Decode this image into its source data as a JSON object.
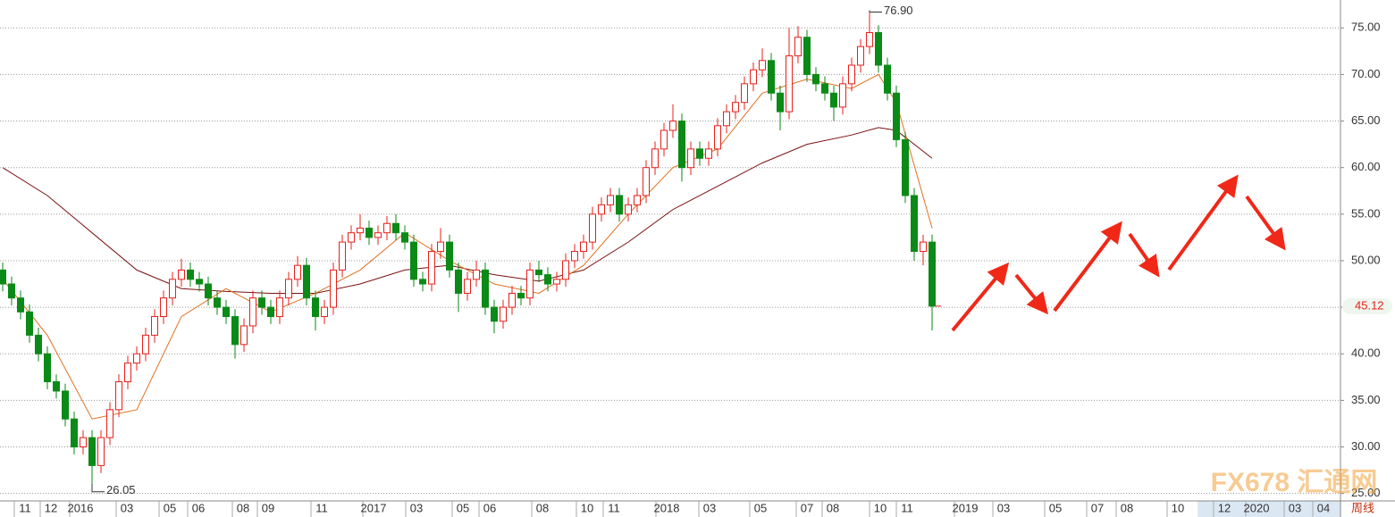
{
  "chart_data": {
    "type": "candlestick",
    "up_color": "#e8201a",
    "down_color": "#0a8a16",
    "ylim": [
      24.2,
      78
    ],
    "xlim": [
      -0.3,
      149.7
    ],
    "grid": true,
    "yticks": [
      {
        "value": 25,
        "label": "25.00"
      },
      {
        "value": 30,
        "label": "30.00"
      },
      {
        "value": 35,
        "label": "35.00"
      },
      {
        "value": 40,
        "label": "40.00"
      },
      {
        "value": 45,
        "label": "45.00"
      },
      {
        "value": 50,
        "label": "50.00"
      },
      {
        "value": 55,
        "label": "55.00"
      },
      {
        "value": 60,
        "label": "60.00"
      },
      {
        "value": 65,
        "label": "65.00"
      },
      {
        "value": 70,
        "label": "70.00"
      },
      {
        "value": 75,
        "label": "75.00"
      }
    ],
    "xticks": [
      {
        "value": 2.5,
        "label": "11"
      },
      {
        "value": 5.4,
        "label": "12"
      },
      {
        "value": 8.7,
        "label": "2016"
      },
      {
        "value": 13.9,
        "label": "03"
      },
      {
        "value": 18.7,
        "label": "05"
      },
      {
        "value": 21.9,
        "label": "06"
      },
      {
        "value": 26.9,
        "label": "08"
      },
      {
        "value": 29.7,
        "label": "09"
      },
      {
        "value": 35.7,
        "label": "11"
      },
      {
        "value": 41.5,
        "label": "2017"
      },
      {
        "value": 46.3,
        "label": "03"
      },
      {
        "value": 51.5,
        "label": "05"
      },
      {
        "value": 54.5,
        "label": "06"
      },
      {
        "value": 60.4,
        "label": "08"
      },
      {
        "value": 65.4,
        "label": "10"
      },
      {
        "value": 68.4,
        "label": "11"
      },
      {
        "value": 74.3,
        "label": "2018"
      },
      {
        "value": 79.1,
        "label": "03"
      },
      {
        "value": 84.8,
        "label": "05"
      },
      {
        "value": 90,
        "label": "07"
      },
      {
        "value": 92.9,
        "label": "08"
      },
      {
        "value": 98.2,
        "label": "10"
      },
      {
        "value": 101.2,
        "label": "11"
      },
      {
        "value": 107.7,
        "label": "2019"
      },
      {
        "value": 112,
        "label": "03"
      },
      {
        "value": 117.8,
        "label": "05"
      },
      {
        "value": 122.5,
        "label": "07"
      },
      {
        "value": 125.8,
        "label": "08"
      },
      {
        "value": 131.5,
        "label": "10"
      },
      {
        "value": 136.7,
        "label": "12"
      },
      {
        "value": 140.3,
        "label": "2020"
      },
      {
        "value": 144.6,
        "label": "03"
      },
      {
        "value": 147.8,
        "label": "04"
      }
    ],
    "period_label": "周线",
    "ohlc": [
      [
        49,
        49.8,
        46.7,
        47.5
      ],
      [
        47.5,
        48.3,
        45.2,
        46
      ],
      [
        46,
        46.8,
        43.7,
        44.5
      ],
      [
        44.5,
        45.3,
        41.2,
        42
      ],
      [
        42,
        42.8,
        39.2,
        40
      ],
      [
        40,
        40.8,
        36.2,
        37
      ],
      [
        37,
        37.8,
        35.2,
        36
      ],
      [
        36,
        36.8,
        32.2,
        33
      ],
      [
        33,
        33.8,
        29.2,
        30
      ],
      [
        30,
        31.8,
        29.2,
        31
      ],
      [
        31,
        31.8,
        26.05,
        28
      ],
      [
        28,
        31.8,
        27.2,
        31
      ],
      [
        31,
        34.8,
        30.2,
        34
      ],
      [
        34,
        37.8,
        33.2,
        37
      ],
      [
        37,
        39.8,
        36.2,
        39
      ],
      [
        39,
        40.8,
        38.2,
        40
      ],
      [
        40,
        42.8,
        39.2,
        42
      ],
      [
        42,
        44.8,
        41.2,
        44
      ],
      [
        44,
        46.8,
        43.2,
        46
      ],
      [
        46,
        48.8,
        45.2,
        48
      ],
      [
        48,
        50.2,
        47.2,
        49
      ],
      [
        49,
        49.8,
        47.2,
        48
      ],
      [
        48,
        48.8,
        46.7,
        47.5
      ],
      [
        47.5,
        48.3,
        45.2,
        46
      ],
      [
        46,
        46.8,
        44.2,
        45
      ],
      [
        45,
        45.8,
        43.2,
        44
      ],
      [
        44,
        44.8,
        39.5,
        41
      ],
      [
        41,
        43.8,
        40.2,
        43
      ],
      [
        43,
        46.8,
        42.2,
        46
      ],
      [
        46,
        46.8,
        44.2,
        45
      ],
      [
        45,
        45.8,
        43.2,
        44
      ],
      [
        44,
        46.8,
        43.2,
        46
      ],
      [
        46,
        48.8,
        45.2,
        48
      ],
      [
        48,
        50.5,
        47.2,
        49.5
      ],
      [
        49.5,
        50.3,
        45.2,
        46
      ],
      [
        46,
        46.8,
        42.5,
        44
      ],
      [
        44,
        45.8,
        43.2,
        45
      ],
      [
        45,
        49.8,
        44.2,
        49
      ],
      [
        49,
        52.8,
        48.2,
        52
      ],
      [
        52,
        53.8,
        51.2,
        53
      ],
      [
        53,
        55,
        52.2,
        53.5
      ],
      [
        53.5,
        54.3,
        51.7,
        52.5
      ],
      [
        52.5,
        53.8,
        51.7,
        53
      ],
      [
        53,
        54.8,
        52.2,
        54
      ],
      [
        54,
        55,
        52.2,
        53
      ],
      [
        53,
        53.8,
        51.2,
        52
      ],
      [
        52,
        52.8,
        47.2,
        48
      ],
      [
        48,
        48.8,
        46.7,
        47.5
      ],
      [
        47.5,
        51.8,
        46.7,
        51
      ],
      [
        51,
        53.5,
        50.2,
        52
      ],
      [
        52,
        52.8,
        48.2,
        49
      ],
      [
        49,
        49.8,
        44.5,
        46.5
      ],
      [
        46.5,
        48.8,
        45.7,
        48
      ],
      [
        48,
        50,
        47.2,
        49
      ],
      [
        49,
        49.8,
        44.2,
        45
      ],
      [
        45,
        45.8,
        42.2,
        43.5
      ],
      [
        43.5,
        45.8,
        42.7,
        45
      ],
      [
        45,
        47.3,
        44.2,
        46.5
      ],
      [
        46.5,
        47.3,
        45.2,
        46
      ],
      [
        46,
        49.8,
        45.2,
        49
      ],
      [
        49,
        50,
        47.7,
        48.5
      ],
      [
        48.5,
        49.3,
        46.7,
        47.5
      ],
      [
        47.5,
        48.8,
        46.7,
        48
      ],
      [
        48,
        50.8,
        47.2,
        50
      ],
      [
        50,
        51.8,
        49.2,
        51
      ],
      [
        51,
        52.8,
        50.2,
        52
      ],
      [
        52,
        55.8,
        51.2,
        55
      ],
      [
        55,
        56.8,
        54.2,
        56
      ],
      [
        56,
        57.8,
        55.2,
        57
      ],
      [
        57,
        57.8,
        54.2,
        55
      ],
      [
        55,
        56.8,
        54.2,
        56
      ],
      [
        56,
        57.8,
        55.2,
        57
      ],
      [
        57,
        60.8,
        56.2,
        60
      ],
      [
        60,
        62.8,
        59.2,
        62
      ],
      [
        62,
        64.8,
        61.2,
        64
      ],
      [
        64,
        66.8,
        63.2,
        65
      ],
      [
        65,
        65.8,
        58.5,
        60
      ],
      [
        60,
        62.8,
        59.2,
        62
      ],
      [
        62,
        62.8,
        60.2,
        61
      ],
      [
        61,
        62.8,
        60.2,
        62
      ],
      [
        62,
        65.3,
        61.2,
        64.5
      ],
      [
        64.5,
        66.8,
        63.7,
        66
      ],
      [
        66,
        67.8,
        65.2,
        67
      ],
      [
        67,
        69.8,
        66.2,
        69
      ],
      [
        69,
        71.3,
        68.2,
        70.5
      ],
      [
        70.5,
        72.8,
        69.7,
        71.5
      ],
      [
        71.5,
        72.3,
        67.2,
        68
      ],
      [
        68,
        68.8,
        64,
        66
      ],
      [
        66,
        75,
        65.2,
        72
      ],
      [
        72,
        75.2,
        71.2,
        74
      ],
      [
        74,
        74.8,
        69.2,
        70
      ],
      [
        70,
        70.8,
        68.2,
        69
      ],
      [
        69,
        69.8,
        67.2,
        68
      ],
      [
        68,
        68.8,
        65,
        66.5
      ],
      [
        66.5,
        69.8,
        65.7,
        69
      ],
      [
        69,
        71.8,
        68.2,
        71
      ],
      [
        71,
        73.8,
        70.2,
        73
      ],
      [
        73,
        76.9,
        72.2,
        74.5
      ],
      [
        74.5,
        75.3,
        70.2,
        71
      ],
      [
        71,
        71.8,
        67.2,
        68
      ],
      [
        68,
        68.8,
        62.2,
        63
      ],
      [
        63,
        63.8,
        56.2,
        57
      ],
      [
        57,
        57.8,
        50,
        51
      ],
      [
        51,
        52.8,
        49.5,
        52
      ],
      [
        52,
        52.8,
        42.5,
        45.12
      ]
    ],
    "lines": [
      {
        "color": "#7a1010",
        "x": [
          0,
          5,
          10,
          15,
          20,
          25,
          30,
          35,
          40,
          45,
          50,
          55,
          60,
          65,
          70,
          75,
          80,
          85,
          90,
          95,
          98,
          100,
          104
        ],
        "values": [
          60,
          57,
          53,
          49,
          47,
          46.7,
          46.5,
          46.5,
          47.5,
          49,
          49.5,
          48.5,
          47.8,
          49,
          52,
          55.5,
          58,
          60.5,
          62.5,
          63.5,
          64.3,
          64,
          61
        ]
      },
      {
        "color": "#e07020",
        "x": [
          0,
          5,
          10,
          15,
          20,
          25,
          30,
          35,
          40,
          45,
          50,
          55,
          60,
          65,
          70,
          75,
          80,
          85,
          90,
          95,
          98,
          100,
          104
        ],
        "values": [
          48,
          42,
          33,
          34,
          44,
          47,
          44.5,
          46.5,
          49,
          53,
          50,
          47.5,
          46.5,
          49.5,
          55,
          60,
          62,
          68,
          69.5,
          68.5,
          70,
          67,
          53.5
        ]
      }
    ],
    "annotations": [
      {
        "x": 97,
        "value": 76.9,
        "label": "76.90"
      },
      {
        "x": 10,
        "value": 26.05,
        "label": "26.05"
      }
    ],
    "last_price": {
      "value": 45.12,
      "label": "45.12"
    },
    "watermark": "FX678 汇通网"
  }
}
